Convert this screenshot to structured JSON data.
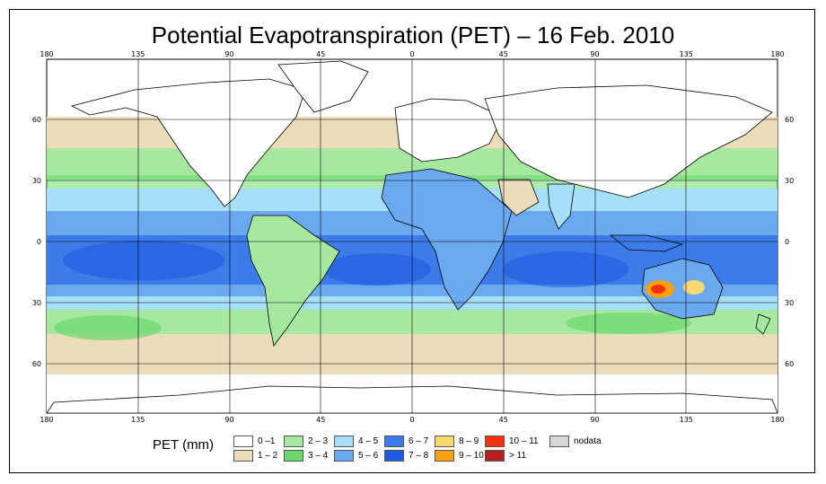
{
  "title": "Potential Evapotranspiration (PET) – 16 Feb. 2010",
  "longitude_ticks": [
    "180",
    "135",
    "90",
    "45",
    "0",
    "45",
    "90",
    "135",
    "180"
  ],
  "latitude_ticks": [
    "60",
    "30",
    "0",
    "30",
    "60"
  ],
  "legend": {
    "label": "PET (mm)",
    "items": [
      {
        "label": "0 –1",
        "color": "#ffffff"
      },
      {
        "label": "1 – 2",
        "color": "#ecdcbc"
      },
      {
        "label": "2 – 3",
        "color": "#a6e8a0"
      },
      {
        "label": "3 – 4",
        "color": "#6ad86c"
      },
      {
        "label": "4 – 5",
        "color": "#a6e0f8"
      },
      {
        "label": "5 – 6",
        "color": "#6aa8f0"
      },
      {
        "label": "6 – 7",
        "color": "#3c7ce8"
      },
      {
        "label": "7 – 8",
        "color": "#1e5ae0"
      },
      {
        "label": "8 – 9",
        "color": "#f8d870"
      },
      {
        "label": "9 – 10",
        "color": "#f8a010"
      },
      {
        "label": "10 – 11",
        "color": "#f83010"
      },
      {
        "label": "> 11",
        "color": "#b02020"
      },
      {
        "label": "nodata",
        "color": "#d8d8d8"
      }
    ]
  }
}
